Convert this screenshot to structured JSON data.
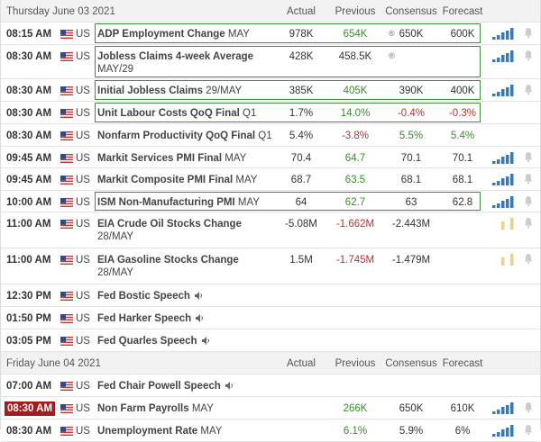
{
  "sections": [
    {
      "date": "Thursday June 03 2021",
      "headers": [
        "Actual",
        "Previous",
        "Consensus",
        "Forecast"
      ],
      "rows": [
        {
          "time": "08:15 AM",
          "country": "US",
          "event": "ADP Employment Change",
          "period": "MAY",
          "actual": "978K",
          "previous": "654K",
          "previous_color": "#3a8a2e",
          "revised": true,
          "consensus": "650K",
          "forecast": "600K",
          "highlight": true,
          "chart": "#3b78b8",
          "bell": true
        },
        {
          "time": "08:30 AM",
          "country": "US",
          "event": "Jobless Claims 4-week Average",
          "period": "MAY/29",
          "actual": "428K",
          "previous": "458.5K",
          "revised": true,
          "highlight": true,
          "chart": "#3b78b8",
          "bell": true
        },
        {
          "time": "08:30 AM",
          "country": "US",
          "event": "Initial Jobless Claims",
          "period": "29/MAY",
          "actual": "385K",
          "previous": "405K",
          "previous_color": "#3a8a2e",
          "consensus": "390K",
          "forecast": "400K",
          "highlight": true,
          "chart": "#3b78b8",
          "bell": true
        },
        {
          "time": "08:30 AM",
          "country": "US",
          "event": "Unit Labour Costs QoQ Final",
          "period": "Q1",
          "actual": "1.7%",
          "previous": "14.0%",
          "previous_color": "#3a8a2e",
          "consensus": "-0.4%",
          "consensus_color": "#b83232",
          "forecast": "-0.3%",
          "forecast_color": "#b83232",
          "highlight": true
        },
        {
          "time": "08:30 AM",
          "country": "US",
          "event": "Nonfarm Productivity QoQ Final",
          "period": "Q1",
          "actual": "5.4%",
          "previous": "-3.8%",
          "previous_color": "#b83232",
          "consensus": "5.5%",
          "consensus_color": "#3a8a2e",
          "forecast": "5.4%",
          "forecast_color": "#3a8a2e"
        },
        {
          "time": "09:45 AM",
          "country": "US",
          "event": "Markit Services PMI Final",
          "period": "MAY",
          "actual": "70.4",
          "previous": "64.7",
          "previous_color": "#3a8a2e",
          "consensus": "70.1",
          "forecast": "70.1",
          "chart": "#3b78b8",
          "bell": true
        },
        {
          "time": "09:45 AM",
          "country": "US",
          "event": "Markit Composite PMI Final",
          "period": "MAY",
          "actual": "68.7",
          "previous": "63.5",
          "previous_color": "#3a8a2e",
          "consensus": "68.1",
          "forecast": "68.1",
          "chart": "#3b78b8",
          "bell": true
        },
        {
          "time": "10:00 AM",
          "country": "US",
          "event": "ISM Non-Manufacturing PMI",
          "period": "MAY",
          "actual": "64",
          "previous": "62.7",
          "previous_color": "#3a8a2e",
          "consensus": "63",
          "forecast": "62.8",
          "highlight": true,
          "chart": "#3b78b8",
          "bell": true
        },
        {
          "time": "11:00 AM",
          "country": "US",
          "event": "EIA Crude Oil Stocks Change",
          "period": "28/MAY",
          "actual": "-5.08M",
          "previous": "-1.662M",
          "previous_color": "#b83232",
          "consensus": "-2.443M",
          "chart": "#e8cf9a",
          "bell": true
        },
        {
          "time": "11:00 AM",
          "country": "US",
          "event": "EIA Gasoline Stocks Change",
          "period": "28/MAY",
          "actual": "1.5M",
          "previous": "-1.745M",
          "previous_color": "#b83232",
          "consensus": "-1.479M",
          "chart": "#e8cf9a",
          "bell": true
        },
        {
          "time": "12:30 PM",
          "country": "US",
          "event": "Fed Bostic Speech",
          "speech": true
        },
        {
          "time": "01:50 PM",
          "country": "US",
          "event": "Fed Harker Speech",
          "speech": true
        },
        {
          "time": "03:05 PM",
          "country": "US",
          "event": "Fed Quarles Speech",
          "speech": true
        }
      ]
    },
    {
      "date": "Friday June 04 2021",
      "headers": [
        "Actual",
        "Previous",
        "Consensus",
        "Forecast"
      ],
      "rows": [
        {
          "time": "07:00 AM",
          "country": "US",
          "event": "Fed Chair Powell Speech",
          "speech": true
        },
        {
          "time": "08:30 AM",
          "time_badge": true,
          "country": "US",
          "event": "Non Farm Payrolls",
          "period": "MAY",
          "previous": "266K",
          "previous_color": "#3a8a2e",
          "consensus": "650K",
          "forecast": "610K",
          "chart": "#3b78b8",
          "bell": true
        },
        {
          "time": "08:30 AM",
          "country": "US",
          "event": "Unemployment Rate",
          "period": "MAY",
          "previous": "6.1%",
          "previous_color": "#3a8a2e",
          "consensus": "5.9%",
          "forecast": "6%",
          "chart": "#3b78b8",
          "bell": true
        }
      ]
    }
  ]
}
